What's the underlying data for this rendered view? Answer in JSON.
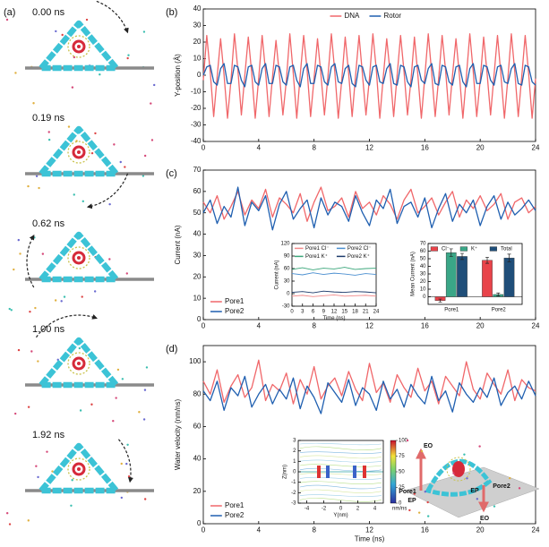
{
  "panel_a": {
    "label": "(a)",
    "times": [
      "0.00 ns",
      "0.19 ns",
      "0.62 ns",
      "1.00 ns",
      "1.92 ns"
    ]
  },
  "panel_d_art": {
    "labels": [
      "EO",
      "Pore1",
      "EP",
      "EP",
      "Pore2",
      "EO"
    ]
  },
  "chart_data": [
    {
      "type": "line",
      "label": "(b)",
      "ylabel": "Y-position (Å)",
      "xlim": [
        0,
        24
      ],
      "xticks": [
        0,
        4,
        8,
        12,
        16,
        20,
        24
      ],
      "ylim": [
        -40,
        40
      ],
      "yticks": [
        -40,
        -30,
        -20,
        -10,
        0,
        10,
        20,
        30,
        40
      ],
      "legend": "top",
      "x": [
        0,
        0.25,
        0.5,
        0.75,
        1,
        1.25,
        1.5,
        1.75,
        2,
        2.25,
        2.5,
        2.75,
        3,
        3.25,
        3.5,
        3.75,
        4,
        4.25,
        4.5,
        4.75,
        5,
        5.25,
        5.5,
        5.75,
        6,
        6.25,
        6.5,
        6.75,
        7,
        7.25,
        7.5,
        7.75,
        8,
        8.25,
        8.5,
        8.75,
        9,
        9.25,
        9.5,
        9.75,
        10,
        10.25,
        10.5,
        10.75,
        11,
        11.25,
        11.5,
        11.75,
        12,
        12.25,
        12.5,
        12.75,
        13,
        13.25,
        13.5,
        13.75,
        14,
        14.25,
        14.5,
        14.75,
        15,
        15.25,
        15.5,
        15.75,
        16,
        16.25,
        16.5,
        16.75,
        17,
        17.25,
        17.5,
        17.75,
        18,
        18.25,
        18.5,
        18.75,
        19,
        19.25,
        19.5,
        19.75,
        20,
        20.25,
        20.5,
        20.75,
        21,
        21.25,
        21.5,
        21.75,
        22,
        22.25,
        22.5,
        22.75,
        23,
        23.25,
        23.5,
        23.75,
        24
      ],
      "series": [
        {
          "name": "DNA",
          "color": "#f0676a",
          "values": [
            -3,
            24,
            2,
            -25,
            -1,
            22,
            0,
            -26,
            -3,
            25,
            3,
            -24,
            0,
            23,
            1,
            -26,
            -2,
            24,
            2,
            -25,
            -1,
            21,
            0,
            -24,
            -3,
            25,
            1,
            -26,
            0,
            24,
            3,
            -25,
            -2,
            22,
            0,
            -24,
            -1,
            25,
            2,
            -26,
            -3,
            23,
            1,
            -25,
            0,
            24,
            0,
            -24,
            -2,
            25,
            3,
            -26,
            -1,
            22,
            1,
            -25,
            0,
            24,
            2,
            -24,
            -3,
            23,
            0,
            -26,
            -1,
            25,
            1,
            -25,
            -2,
            24,
            3,
            -24,
            0,
            22,
            0,
            -26,
            -1,
            25,
            2,
            -25,
            -3,
            23,
            1,
            -24,
            0,
            24,
            0,
            -26,
            -2,
            25,
            2,
            -25,
            -1,
            24,
            1,
            -26,
            -2
          ]
        },
        {
          "name": "Rotor",
          "color": "#1f5fb0",
          "values": [
            0,
            5,
            6,
            -4,
            -6,
            4,
            7,
            -5,
            -5,
            6,
            5,
            -3,
            -7,
            5,
            6,
            -4,
            -6,
            4,
            7,
            -5,
            -5,
            6,
            5,
            -4,
            -6,
            5,
            6,
            -3,
            -7,
            4,
            7,
            -5,
            -5,
            6,
            5,
            -4,
            -6,
            5,
            7,
            -4,
            -5,
            4,
            6,
            -5,
            -7,
            6,
            5,
            -3,
            -6,
            5,
            6,
            -4,
            -5,
            4,
            7,
            -5,
            -6,
            6,
            5,
            -4,
            -7,
            5,
            6,
            -3,
            -5,
            4,
            7,
            -5,
            -6,
            6,
            5,
            -4,
            -6,
            5,
            6,
            -4,
            -7,
            4,
            7,
            -5,
            -5,
            6,
            5,
            -3,
            -6,
            5,
            6,
            -4,
            -5,
            4,
            7,
            -5,
            -6,
            6,
            5,
            -4,
            -6
          ]
        }
      ]
    },
    {
      "type": "line",
      "label": "(c)",
      "ylabel": "Current (nA)",
      "xlim": [
        0,
        24
      ],
      "xticks": [
        0,
        4,
        8,
        12,
        16,
        20,
        24
      ],
      "ylim": [
        0,
        70
      ],
      "yticks": [
        0,
        10,
        20,
        30,
        40,
        50,
        60,
        70
      ],
      "legend": "lower left",
      "x": [
        0,
        0.5,
        1,
        1.5,
        2,
        2.5,
        3,
        3.5,
        4,
        4.5,
        5,
        5.5,
        6,
        6.5,
        7,
        7.5,
        8,
        8.5,
        9,
        9.5,
        10,
        10.5,
        11,
        11.5,
        12,
        12.5,
        13,
        13.5,
        14,
        14.5,
        15,
        15.5,
        16,
        16.5,
        17,
        17.5,
        18,
        18.5,
        19,
        19.5,
        20,
        20.5,
        21,
        21.5,
        22,
        22.5,
        23,
        23.5,
        24
      ],
      "series": [
        {
          "name": "Pore1",
          "color": "#f0676a",
          "values": [
            55,
            50,
            58,
            47,
            53,
            60,
            49,
            56,
            52,
            61,
            48,
            57,
            54,
            50,
            59,
            46,
            55,
            62,
            51,
            53,
            57,
            48,
            60,
            52,
            55,
            49,
            58,
            54,
            47,
            56,
            61,
            50,
            53,
            57,
            49,
            55,
            60,
            48,
            56,
            52,
            58,
            51,
            54,
            59,
            47,
            55,
            57,
            50,
            53
          ]
        },
        {
          "name": "Pore2",
          "color": "#1f5fb0",
          "values": [
            50,
            56,
            45,
            53,
            48,
            62,
            44,
            55,
            51,
            58,
            42,
            54,
            60,
            47,
            52,
            56,
            43,
            57,
            49,
            55,
            53,
            46,
            58,
            50,
            44,
            56,
            52,
            61,
            45,
            53,
            55,
            48,
            57,
            43,
            52,
            59,
            46,
            54,
            50,
            56,
            44,
            53,
            58,
            47,
            55,
            49,
            52,
            56,
            51
          ]
        }
      ]
    },
    {
      "type": "line",
      "xlabel": "Time (ns)",
      "ylabel": "Current (nA)",
      "xlim": [
        0,
        24
      ],
      "xticks": [
        0,
        3,
        6,
        9,
        12,
        15,
        18,
        21,
        24
      ],
      "ylim": [
        -30,
        120
      ],
      "yticks": [
        -30,
        0,
        30,
        60,
        90,
        120
      ],
      "legend": "upper left",
      "legend_columns": 2,
      "x": [
        0,
        3,
        6,
        9,
        12,
        15,
        18,
        21,
        24
      ],
      "series": [
        {
          "name": "Pore1 Cl⁻",
          "color": "#f28a8a",
          "values": [
            -6,
            -4,
            -7,
            -5,
            -3,
            -6,
            -5,
            -4,
            -6
          ]
        },
        {
          "name": "Pore2 Cl⁻",
          "color": "#4b8fd0",
          "values": [
            48,
            45,
            50,
            46,
            49,
            47,
            44,
            48,
            46
          ]
        },
        {
          "name": "Pore1 K⁺",
          "color": "#3aa67a",
          "values": [
            58,
            62,
            57,
            61,
            59,
            63,
            58,
            60,
            61
          ]
        },
        {
          "name": "Pore2 K⁺",
          "color": "#1d3a6b",
          "values": [
            3,
            5,
            2,
            6,
            4,
            3,
            5,
            4,
            2
          ]
        }
      ]
    },
    {
      "type": "bar",
      "ylabel": "Mean Current (nA)",
      "ylim": [
        -10,
        70
      ],
      "yticks": [
        0,
        10,
        20,
        30,
        40,
        50,
        60,
        70
      ],
      "legend": "top",
      "categories": [
        "Pore1",
        "Pore2"
      ],
      "series": [
        {
          "name": "Cl⁻",
          "color": "#e8434a",
          "values": [
            -5,
            48
          ],
          "errors": [
            2,
            4
          ]
        },
        {
          "name": "K⁺",
          "color": "#3aa687",
          "values": [
            58,
            3
          ],
          "errors": [
            5,
            2
          ]
        },
        {
          "name": "Total",
          "color": "#1f4e79",
          "values": [
            53,
            51
          ],
          "errors": [
            4,
            5
          ]
        }
      ]
    },
    {
      "type": "line",
      "label": "(d)",
      "xlabel": "Time (ns)",
      "ylabel": "Water velocity (nm/ns)",
      "xlim": [
        0,
        24
      ],
      "xticks": [
        0,
        4,
        8,
        12,
        16,
        20,
        24
      ],
      "ylim": [
        0,
        110
      ],
      "yticks": [
        0,
        20,
        40,
        60,
        80,
        100
      ],
      "legend": "lower left",
      "x": [
        0,
        0.5,
        1,
        1.5,
        2,
        2.5,
        3,
        3.5,
        4,
        4.5,
        5,
        5.5,
        6,
        6.5,
        7,
        7.5,
        8,
        8.5,
        9,
        9.5,
        10,
        10.5,
        11,
        11.5,
        12,
        12.5,
        13,
        13.5,
        14,
        14.5,
        15,
        15.5,
        16,
        16.5,
        17,
        17.5,
        18,
        18.5,
        19,
        19.5,
        20,
        20.5,
        21,
        21.5,
        22,
        22.5,
        23,
        23.5,
        24
      ],
      "series": [
        {
          "name": "Pore1",
          "color": "#f0676a",
          "values": [
            88,
            80,
            95,
            75,
            85,
            92,
            78,
            84,
            101,
            76,
            86,
            82,
            93,
            74,
            89,
            80,
            97,
            77,
            85,
            90,
            79,
            94,
            83,
            76,
            99,
            81,
            87,
            75,
            92,
            84,
            78,
            96,
            82,
            88,
            74,
            91,
            85,
            79,
            100,
            83,
            77,
            93,
            86,
            80,
            95,
            76,
            89,
            84,
            82
          ]
        },
        {
          "name": "Pore2",
          "color": "#1f5fb0",
          "values": [
            82,
            76,
            88,
            70,
            84,
            79,
            91,
            72,
            80,
            86,
            74,
            83,
            77,
            90,
            71,
            85,
            78,
            68,
            87,
            81,
            75,
            89,
            73,
            84,
            80,
            70,
            88,
            77,
            83,
            72,
            86,
            79,
            74,
            91,
            76,
            82,
            69,
            87,
            80,
            75,
            84,
            78,
            90,
            73,
            81,
            85,
            77,
            88,
            79
          ]
        }
      ]
    },
    {
      "type": "streamplot",
      "xlabel": "Y(nm)",
      "ylabel": "Z(nm)",
      "xlim": [
        -5,
        5
      ],
      "xticks": [
        -4,
        -2,
        0,
        2,
        4
      ],
      "ylim": [
        -3,
        3
      ],
      "yticks": [
        -3,
        -2,
        -1,
        0,
        1,
        2,
        3
      ],
      "colorbar": {
        "lim": [
          0,
          100
        ],
        "ticks": [
          0,
          25,
          50,
          75,
          100
        ],
        "label": "nm/ns"
      }
    }
  ]
}
